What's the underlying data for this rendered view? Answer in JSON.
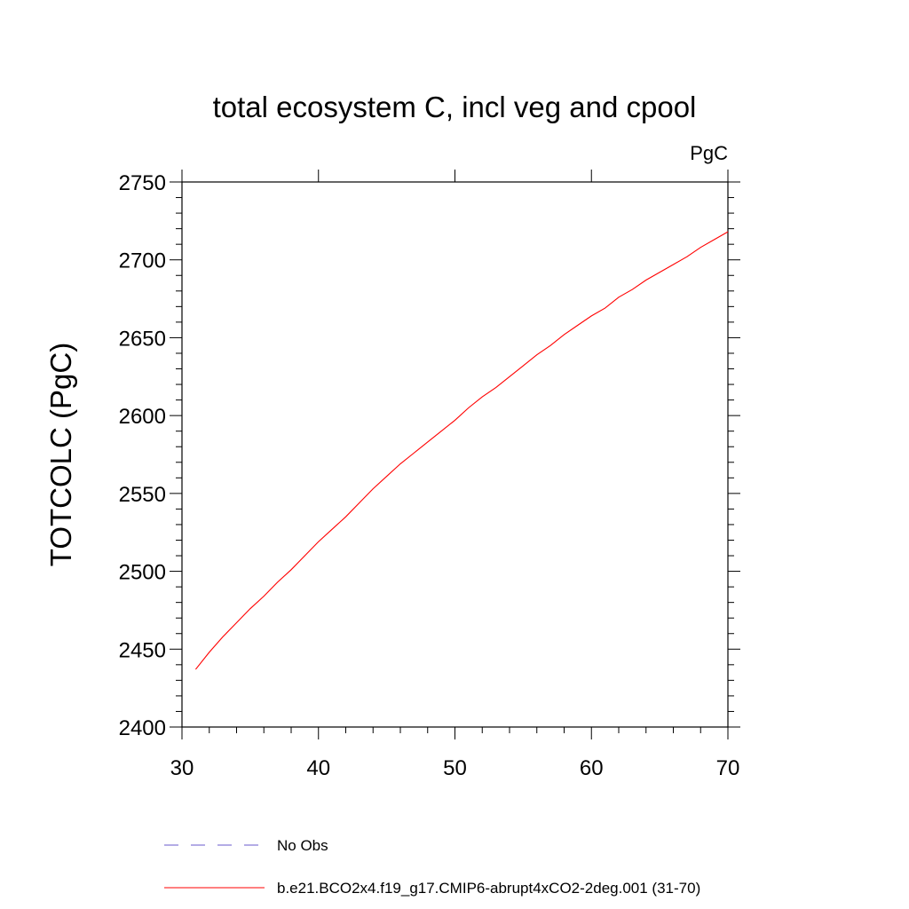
{
  "chart_data": {
    "type": "line",
    "title": "total ecosystem C, incl veg and cpool",
    "units": "PgC",
    "xlabel": "",
    "ylabel": "TOTCOLC  (PgC)",
    "xlim": [
      30,
      70
    ],
    "ylim": [
      2400,
      2750
    ],
    "x_ticks": [
      "30",
      "40",
      "50",
      "60",
      "70"
    ],
    "y_ticks": [
      "2400",
      "2450",
      "2500",
      "2550",
      "2600",
      "2650",
      "2700",
      "2750"
    ],
    "grid": false,
    "legend_position": "bottom",
    "series": [
      {
        "name": "No Obs",
        "color": "#6a5acd",
        "dash": "dashed",
        "x": [],
        "y": []
      },
      {
        "name": "b.e21.BCO2x4.f19_g17.CMIP6-abrupt4xCO2-2deg.001 (31-70)",
        "color": "#ff0000",
        "dash": "solid",
        "x": [
          31,
          32,
          33,
          34,
          35,
          36,
          37,
          38,
          39,
          40,
          41,
          42,
          43,
          44,
          45,
          46,
          47,
          48,
          49,
          50,
          51,
          52,
          53,
          54,
          55,
          56,
          57,
          58,
          59,
          60,
          61,
          62,
          63,
          64,
          65,
          66,
          67,
          68,
          69,
          70
        ],
        "y": [
          2437,
          2448,
          2458,
          2467,
          2476,
          2484,
          2493,
          2501,
          2510,
          2519,
          2527,
          2535,
          2544,
          2553,
          2561,
          2569,
          2576,
          2583,
          2590,
          2597,
          2605,
          2612,
          2618,
          2625,
          2632,
          2639,
          2645,
          2652,
          2658,
          2664,
          2669,
          2676,
          2681,
          2687,
          2692,
          2697,
          2702,
          2708,
          2713,
          2718
        ]
      }
    ]
  }
}
